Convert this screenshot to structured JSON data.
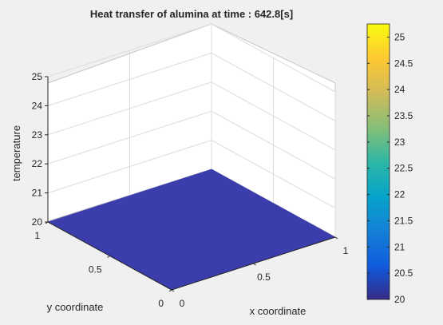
{
  "chart_data": {
    "type": "surface",
    "title": "Heat transfer of alumina at time : 642.8[s]",
    "xlabel": "x coordinate",
    "ylabel": "y coordinate",
    "zlabel": "temperature",
    "xlim": [
      0,
      1
    ],
    "ylim": [
      0,
      1
    ],
    "zlim": [
      20,
      25
    ],
    "x_ticks": [
      0,
      0.5,
      1
    ],
    "x_tick_labels": [
      "0",
      "0.5",
      "1"
    ],
    "y_ticks": [
      0,
      0.5,
      1
    ],
    "y_tick_labels": [
      "0",
      "0.5",
      "1"
    ],
    "z_ticks": [
      20,
      21,
      22,
      23,
      24,
      25
    ],
    "z_tick_labels": [
      "20",
      "21",
      "22",
      "23",
      "24",
      "25"
    ],
    "grid": true,
    "colormap": "parula",
    "surface": {
      "x": [
        0,
        0.5,
        1
      ],
      "y": [
        0,
        0.5,
        1
      ],
      "z": [
        [
          20,
          20,
          20
        ],
        [
          20,
          20,
          20
        ],
        [
          20,
          20,
          20
        ]
      ],
      "color": "#3a3dab"
    },
    "colorbar": {
      "clim": [
        20,
        25.25
      ],
      "ticks": [
        20,
        20.5,
        21,
        21.5,
        22,
        22.5,
        23,
        23.5,
        24,
        24.5,
        25
      ],
      "tick_labels": [
        "20",
        "20.5",
        "21",
        "21.5",
        "22",
        "22.5",
        "23",
        "23.5",
        "24",
        "24.5",
        "25"
      ],
      "stops": [
        "#352a87",
        "#0f5cdd",
        "#1481d6",
        "#06a4ca",
        "#2eb7a4",
        "#87bf77",
        "#d1bb59",
        "#fec832",
        "#f9fb0e"
      ]
    }
  }
}
